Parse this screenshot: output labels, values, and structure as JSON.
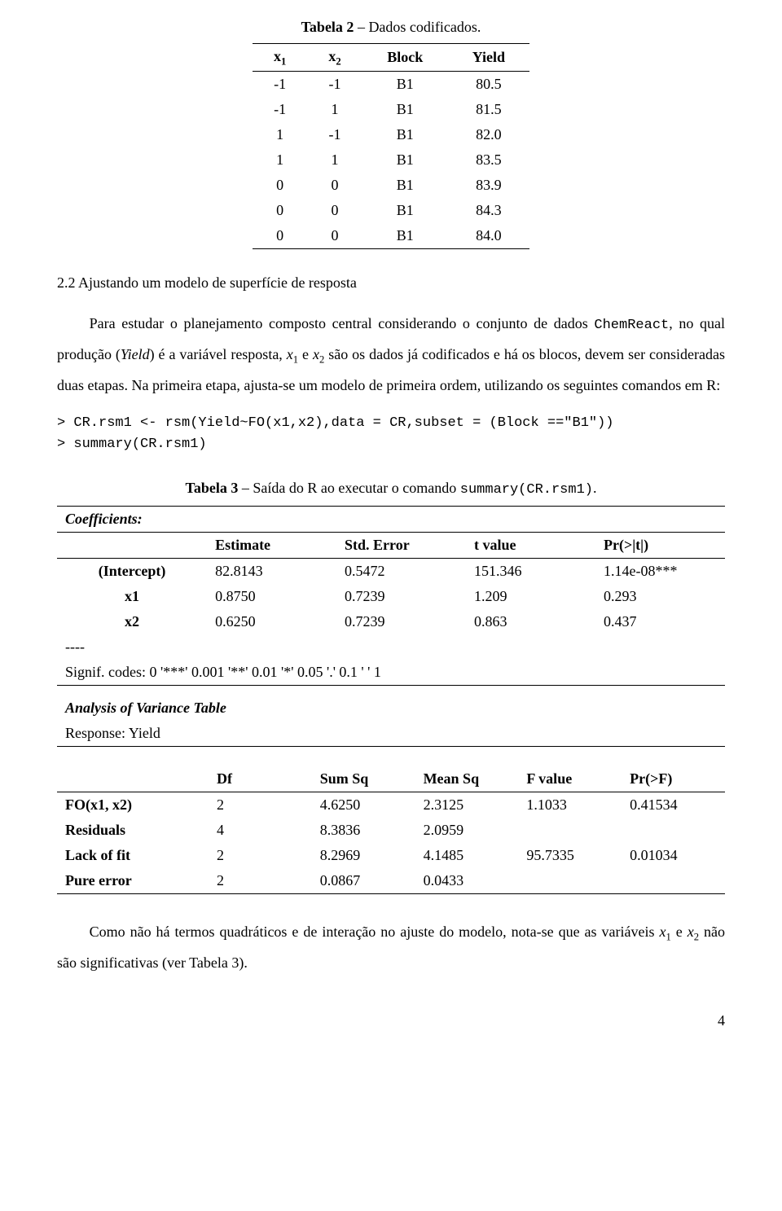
{
  "table2": {
    "caption_bold": "Tabela 2",
    "caption_rest": " – Dados codificados.",
    "headers": {
      "c1": "x",
      "c1sub": "1",
      "c2": "x",
      "c2sub": "2",
      "c3": "Block",
      "c4": "Yield"
    },
    "rows": [
      {
        "x1": "-1",
        "x2": "-1",
        "block": "B1",
        "yield": "80.5"
      },
      {
        "x1": "-1",
        "x2": "1",
        "block": "B1",
        "yield": "81.5"
      },
      {
        "x1": "1",
        "x2": "-1",
        "block": "B1",
        "yield": "82.0"
      },
      {
        "x1": "1",
        "x2": "1",
        "block": "B1",
        "yield": "83.5"
      },
      {
        "x1": "0",
        "x2": "0",
        "block": "B1",
        "yield": "83.9"
      },
      {
        "x1": "0",
        "x2": "0",
        "block": "B1",
        "yield": "84.3"
      },
      {
        "x1": "0",
        "x2": "0",
        "block": "B1",
        "yield": "84.0"
      }
    ]
  },
  "section_title": "2.2 Ajustando um modelo de superfície de resposta",
  "para1_a": "Para estudar o planejamento composto central considerando o conjunto de dados ",
  "para1_chem": "ChemReact",
  "para1_b": ", no qual produção (",
  "para1_yield": "Yield",
  "para1_c": ") é a variável resposta, ",
  "para1_x1": "x",
  "para1_x1sub": "1",
  "para1_d": " e ",
  "para1_x2": "x",
  "para1_x2sub": "2",
  "para1_e": " são os dados já codificados e há os blocos, devem ser consideradas duas etapas. Na primeira etapa, ajusta-se um modelo de primeira ordem, utilizando os seguintes comandos em R:",
  "code_line1": "> CR.rsm1 <- rsm(Yield~FO(x1,x2),data = CR,subset = (Block ==\"B1\"))",
  "code_line2": "> summary(CR.rsm1)",
  "table3": {
    "caption_bold": "Tabela 3",
    "caption_rest": " – Saída do R ao executar o comando ",
    "caption_mono": "summary(CR.rsm1)",
    "caption_end": ".",
    "coef_title": "Coefficients:",
    "coef_headers": {
      "c1": "",
      "c2": "Estimate",
      "c3": "Std. Error",
      "c4": "t value",
      "c5": "Pr(>|t|)"
    },
    "coef_rows": [
      {
        "name": "(Intercept)",
        "est": "82.8143",
        "se": "0.5472",
        "t": "151.346",
        "p": "1.14e-08***"
      },
      {
        "name": "x1",
        "est": "0.8750",
        "se": "0.7239",
        "t": "1.209",
        "p": "0.293"
      },
      {
        "name": "x2",
        "est": "0.6250",
        "se": "0.7239",
        "t": "0.863",
        "p": "0.437"
      }
    ],
    "dashes": "----",
    "signif": "Signif. codes: 0 '***' 0.001 '**' 0.01 '*' 0.05 '.' 0.1 ' ' 1",
    "anova_title": "Analysis of Variance Table",
    "anova_response": "Response: Yield",
    "anova_headers": {
      "c1": "",
      "c2": "Df",
      "c3": "Sum Sq",
      "c4": "Mean Sq",
      "c5": "F value",
      "c6": "Pr(>F)"
    },
    "anova_rows": [
      {
        "name": "FO(x1, x2)",
        "df": "2",
        "ss": "4.6250",
        "ms": "2.3125",
        "f": "1.1033",
        "p": "0.41534"
      },
      {
        "name": "Residuals",
        "df": "4",
        "ss": "8.3836",
        "ms": "2.0959",
        "f": "",
        "p": ""
      },
      {
        "name": "Lack of fit",
        "df": "2",
        "ss": "8.2969",
        "ms": "4.1485",
        "f": "95.7335",
        "p": "0.01034"
      },
      {
        "name": "Pure error",
        "df": "2",
        "ss": "0.0867",
        "ms": "0.0433",
        "f": "",
        "p": ""
      }
    ]
  },
  "para2_a": "Como não há termos quadráticos e de interação no ajuste do modelo, nota-se que as variáveis ",
  "para2_x1": "x",
  "para2_x1sub": "1",
  "para2_b": " e ",
  "para2_x2": "x",
  "para2_x2sub": "2",
  "para2_c": " não são significativas (ver Tabela 3).",
  "page_number": "4"
}
